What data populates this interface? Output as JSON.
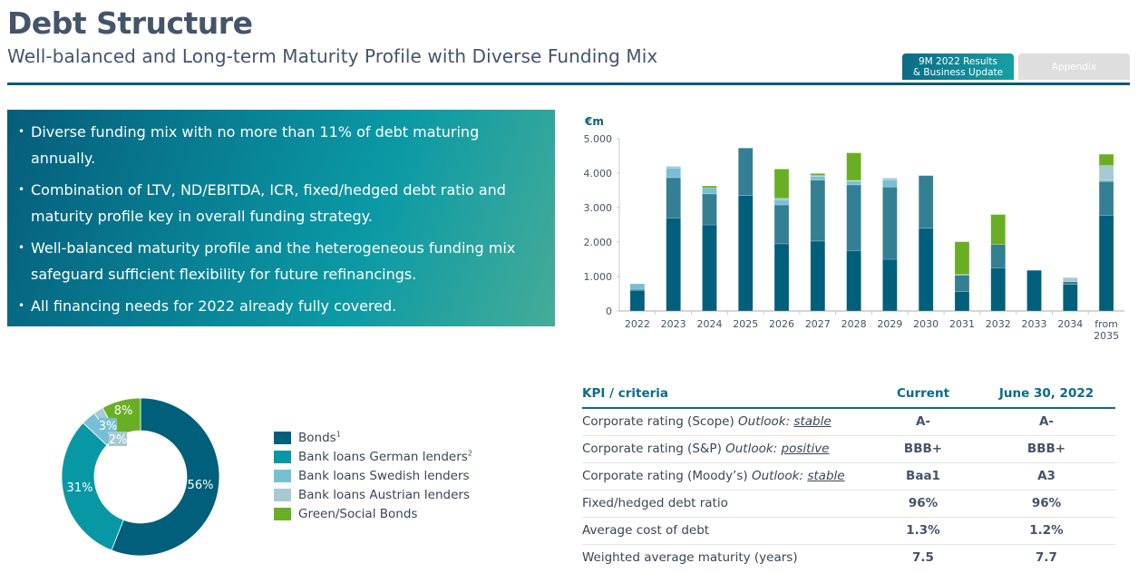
{
  "header": {
    "title": "Debt Structure",
    "subtitle": "Well-balanced and Long-term Maturity Profile with Diverse Funding Mix"
  },
  "nav_tabs": [
    {
      "label_line1": "9M 2022 Results",
      "label_line2": "& Business Update",
      "active": true
    },
    {
      "label": "Appendix",
      "active": false
    }
  ],
  "bullets": [
    "Diverse funding mix with no more than 11% of debt maturing annually.",
    "Combination of LTV, ND/EBITDA, ICR, fixed/hedged debt ratio and maturity profile key in overall funding strategy.",
    "Well-balanced maturity profile and the heterogeneous funding mix safeguard sufficient flexibility for future refinancings.",
    "All financing needs for 2022 already fully covered."
  ],
  "colors": {
    "bonds": "#005f7b",
    "german": "#347f94",
    "swedish": "#78bfd4",
    "austrian": "#a7c9d3",
    "green": "#6aaf23",
    "donut_german": "#0898a5"
  },
  "chart_data": [
    {
      "type": "bar",
      "stacked": true,
      "title": "",
      "ylabel": "€m",
      "xlabel": "",
      "ylim": [
        0,
        5000
      ],
      "yticks": [
        "0",
        "1.000",
        "2.000",
        "3.000",
        "4.000",
        "5.000"
      ],
      "ytick_values": [
        0,
        1000,
        2000,
        3000,
        4000,
        5000
      ],
      "grid": false,
      "categories": [
        "2022",
        "2023",
        "2024",
        "2025",
        "2026",
        "2027",
        "2028",
        "2029",
        "2030",
        "2031",
        "2032",
        "2033",
        "2034",
        "from 2035"
      ],
      "series": [
        {
          "name": "Bonds",
          "color_key": "bonds",
          "values": [
            600,
            2700,
            2500,
            3350,
            1950,
            2030,
            1750,
            1500,
            2400,
            560,
            1250,
            1180,
            770,
            2780
          ]
        },
        {
          "name": "Bank loans German lenders",
          "color_key": "german",
          "values": [
            30,
            1170,
            900,
            1380,
            1130,
            1770,
            1910,
            2100,
            1530,
            480,
            680,
            0,
            80,
            980
          ]
        },
        {
          "name": "Bank loans Swedish lenders",
          "color_key": "swedish",
          "values": [
            160,
            280,
            170,
            0,
            150,
            100,
            110,
            210,
            0,
            0,
            0,
            0,
            0,
            40
          ]
        },
        {
          "name": "Bank loans Austrian lenders",
          "color_key": "austrian",
          "values": [
            0,
            50,
            0,
            0,
            40,
            30,
            20,
            50,
            0,
            20,
            0,
            0,
            120,
            420
          ]
        },
        {
          "name": "Green/Social Bonds",
          "color_key": "green",
          "values": [
            0,
            0,
            60,
            0,
            850,
            60,
            800,
            0,
            0,
            950,
            870,
            0,
            0,
            330
          ]
        }
      ]
    },
    {
      "type": "pie",
      "donut": true,
      "title": "",
      "slices": [
        {
          "label": "Bonds",
          "value": 56,
          "display": "56%",
          "color_key": "bonds"
        },
        {
          "label": "Bank loans German lenders",
          "value": 31,
          "display": "31%",
          "color_key": "donut_german"
        },
        {
          "label": "Bank loans Swedish lenders",
          "value": 3,
          "display": "3%",
          "color_key": "swedish"
        },
        {
          "label": "Bank loans Austrian lenders",
          "value": 2,
          "display": "2%",
          "color_key": "austrian"
        },
        {
          "label": "Green/Social Bonds",
          "value": 8,
          "display": "8%",
          "color_key": "green"
        }
      ],
      "legend_position": "right"
    }
  ],
  "legend": [
    {
      "label": "Bonds",
      "sup": "1",
      "color_key": "bonds"
    },
    {
      "label": "Bank loans German lenders",
      "sup": "2",
      "color_key": "donut_german"
    },
    {
      "label": "Bank loans Swedish lenders",
      "sup": "",
      "color_key": "swedish"
    },
    {
      "label": "Bank loans Austrian lenders",
      "sup": "",
      "color_key": "austrian"
    },
    {
      "label": "Green/Social Bonds",
      "sup": "",
      "color_key": "green"
    }
  ],
  "kpi_table": {
    "headers": [
      "KPI / criteria",
      "Current",
      "June 30, 2022"
    ],
    "rows": [
      {
        "label": "Corporate rating (Scope)",
        "outlook_label": "Outlook:",
        "outlook_value": "stable",
        "current": "A-",
        "previous": "A-"
      },
      {
        "label": "Corporate rating (S&P)",
        "outlook_label": "Outlook:",
        "outlook_value": "positive",
        "current": "BBB+",
        "previous": "BBB+"
      },
      {
        "label": "Corporate rating (Moody’s)",
        "outlook_label": "Outlook:",
        "outlook_value": "stable",
        "current": "Baa1",
        "previous": "A3"
      },
      {
        "label": "Fixed/hedged debt ratio",
        "outlook_label": "",
        "outlook_value": "",
        "current": "96%",
        "previous": "96%"
      },
      {
        "label": "Average cost of debt",
        "outlook_label": "",
        "outlook_value": "",
        "current": "1.3%",
        "previous": "1.2%"
      },
      {
        "label": "Weighted average maturity (years)",
        "outlook_label": "",
        "outlook_value": "",
        "current": "7.5",
        "previous": "7.7"
      }
    ]
  }
}
